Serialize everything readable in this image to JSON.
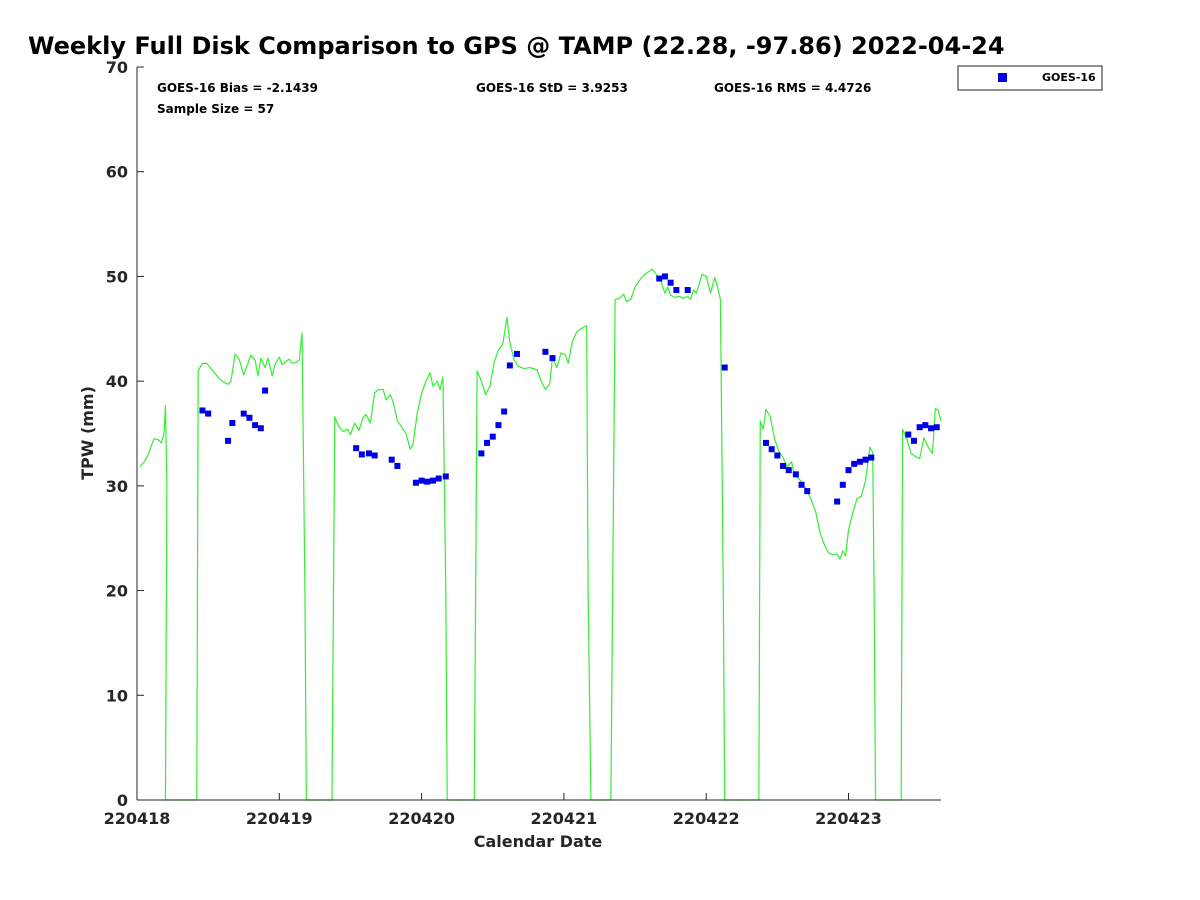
{
  "chart_data": {
    "type": "scatter",
    "title": "Weekly Full Disk Comparison to GPS @ TAMP (22.28, -97.86) 2022-04-24",
    "xlabel": "Calendar Date",
    "ylabel": "TPW (mm)",
    "xlim": [
      220418,
      220423.65
    ],
    "ylim": [
      0,
      70
    ],
    "yticks": [
      0,
      10,
      20,
      30,
      40,
      50,
      60,
      70
    ],
    "xticks": [
      {
        "value": 220418,
        "label": "220418"
      },
      {
        "value": 220419,
        "label": "220419"
      },
      {
        "value": 220420,
        "label": "220420"
      },
      {
        "value": 220421,
        "label": "220421"
      },
      {
        "value": 220422,
        "label": "220422"
      },
      {
        "value": 220423,
        "label": "220423"
      }
    ],
    "stats": {
      "bias": "GOES-16 Bias = -2.1439",
      "std": "GOES-16 StD = 3.9253",
      "rms": "GOES-16 RMS = 4.4726",
      "sample": "Sample Size = 57"
    },
    "legend": [
      {
        "name": "GOES-16",
        "marker": "square",
        "color": "#0000e6"
      }
    ],
    "colors": {
      "gps_line": "#33ee33",
      "goes_marker": "#0000e6",
      "axis": "#262626"
    },
    "series": [
      {
        "name": "GPS",
        "kind": "line",
        "points": [
          [
            220418.02,
            31.8
          ],
          [
            220418.05,
            32.3
          ],
          [
            220418.08,
            33.0
          ],
          [
            220418.1,
            33.8
          ],
          [
            220418.12,
            34.5
          ],
          [
            220418.15,
            34.4
          ],
          [
            220418.17,
            34.1
          ],
          [
            220418.19,
            35.0
          ],
          [
            220418.2,
            37.7
          ],
          [
            220418.21,
            30.0
          ],
          [
            220418.2,
            0.0
          ],
          [
            220418.42,
            0.0
          ],
          [
            220418.43,
            41.0
          ],
          [
            220418.46,
            41.7
          ],
          [
            220418.49,
            41.7
          ],
          [
            220418.52,
            41.2
          ],
          [
            220418.55,
            40.7
          ],
          [
            220418.58,
            40.2
          ],
          [
            220418.61,
            39.9
          ],
          [
            220418.64,
            39.7
          ],
          [
            220418.66,
            40.0
          ],
          [
            220418.69,
            42.6
          ],
          [
            220418.72,
            42.0
          ],
          [
            220418.75,
            40.6
          ],
          [
            220418.78,
            41.7
          ],
          [
            220418.8,
            42.5
          ],
          [
            220418.83,
            42.0
          ],
          [
            220418.85,
            40.5
          ],
          [
            220418.87,
            42.2
          ],
          [
            220418.9,
            41.3
          ],
          [
            220418.92,
            42.2
          ],
          [
            220418.95,
            40.5
          ],
          [
            220418.97,
            41.6
          ],
          [
            220419.0,
            42.3
          ],
          [
            220419.02,
            41.6
          ],
          [
            220419.04,
            41.8
          ],
          [
            220419.07,
            42.1
          ],
          [
            220419.09,
            41.7
          ],
          [
            220419.12,
            41.8
          ],
          [
            220419.14,
            42.0
          ],
          [
            220419.16,
            44.6
          ],
          [
            220419.18,
            20.0
          ],
          [
            220419.19,
            0.0
          ],
          [
            220419.37,
            0.0
          ],
          [
            220419.39,
            36.6
          ],
          [
            220419.42,
            35.6
          ],
          [
            220419.45,
            35.2
          ],
          [
            220419.48,
            35.4
          ],
          [
            220419.5,
            34.9
          ],
          [
            220419.53,
            36.0
          ],
          [
            220419.56,
            35.3
          ],
          [
            220419.59,
            36.6
          ],
          [
            220419.61,
            36.8
          ],
          [
            220419.64,
            36.0
          ],
          [
            220419.67,
            38.9
          ],
          [
            220419.7,
            39.2
          ],
          [
            220419.73,
            39.2
          ],
          [
            220419.75,
            38.2
          ],
          [
            220419.78,
            38.7
          ],
          [
            220419.8,
            38.0
          ],
          [
            220419.83,
            36.2
          ],
          [
            220419.86,
            35.6
          ],
          [
            220419.89,
            35.0
          ],
          [
            220419.92,
            33.5
          ],
          [
            220419.94,
            34.0
          ],
          [
            220419.97,
            37.0
          ],
          [
            220420.0,
            38.8
          ],
          [
            220420.03,
            40.0
          ],
          [
            220420.06,
            40.8
          ],
          [
            220420.08,
            39.5
          ],
          [
            220420.11,
            40.0
          ],
          [
            220420.13,
            39.2
          ],
          [
            220420.15,
            40.4
          ],
          [
            220420.17,
            20.0
          ],
          [
            220420.18,
            0.0
          ],
          [
            220420.37,
            0.0
          ],
          [
            220420.39,
            41.0
          ],
          [
            220420.42,
            40.0
          ],
          [
            220420.45,
            38.7
          ],
          [
            220420.48,
            39.5
          ],
          [
            220420.51,
            41.8
          ],
          [
            220420.54,
            43.0
          ],
          [
            220420.57,
            43.5
          ],
          [
            220420.6,
            46.1
          ],
          [
            220420.62,
            43.7
          ],
          [
            220420.65,
            42.0
          ],
          [
            220420.68,
            41.4
          ],
          [
            220420.72,
            41.2
          ],
          [
            220420.76,
            41.3
          ],
          [
            220420.81,
            41.1
          ],
          [
            220420.84,
            40.0
          ],
          [
            220420.87,
            39.2
          ],
          [
            220420.9,
            39.7
          ],
          [
            220420.92,
            42.3
          ],
          [
            220420.95,
            41.3
          ],
          [
            220420.98,
            42.7
          ],
          [
            220421.01,
            42.5
          ],
          [
            220421.03,
            41.7
          ],
          [
            220421.06,
            43.8
          ],
          [
            220421.09,
            44.7
          ],
          [
            220421.12,
            45.0
          ],
          [
            220421.16,
            45.3
          ],
          [
            220421.17,
            20.0
          ],
          [
            220421.19,
            0.0
          ],
          [
            220421.33,
            0.0
          ],
          [
            220421.36,
            47.8
          ],
          [
            220421.39,
            47.9
          ],
          [
            220421.42,
            48.3
          ],
          [
            220421.44,
            47.6
          ],
          [
            220421.47,
            47.8
          ],
          [
            220421.5,
            49.0
          ],
          [
            220421.53,
            49.6
          ],
          [
            220421.56,
            50.1
          ],
          [
            220421.59,
            50.4
          ],
          [
            220421.62,
            50.7
          ],
          [
            220421.65,
            50.2
          ],
          [
            220421.68,
            49.6
          ],
          [
            220421.71,
            48.4
          ],
          [
            220421.73,
            49.0
          ],
          [
            220421.75,
            48.2
          ],
          [
            220421.78,
            48.0
          ],
          [
            220421.81,
            48.1
          ],
          [
            220421.84,
            47.9
          ],
          [
            220421.87,
            48.1
          ],
          [
            220421.89,
            47.8
          ],
          [
            220421.91,
            48.7
          ],
          [
            220421.93,
            48.4
          ],
          [
            220421.95,
            49.2
          ],
          [
            220421.97,
            50.2
          ],
          [
            220422.0,
            50.0
          ],
          [
            220422.03,
            48.4
          ],
          [
            220422.06,
            49.9
          ],
          [
            220422.08,
            49.0
          ],
          [
            220422.1,
            47.8
          ],
          [
            220422.12,
            20.0
          ],
          [
            220422.13,
            0.0
          ],
          [
            220422.37,
            0.0
          ],
          [
            220422.38,
            36.2
          ],
          [
            220422.4,
            35.4
          ],
          [
            220422.42,
            37.3
          ],
          [
            220422.45,
            36.6
          ],
          [
            220422.48,
            34.5
          ],
          [
            220422.51,
            33.3
          ],
          [
            220422.54,
            32.7
          ],
          [
            220422.57,
            31.8
          ],
          [
            220422.6,
            32.3
          ],
          [
            220422.62,
            31.0
          ],
          [
            220422.65,
            30.7
          ],
          [
            220422.68,
            30.2
          ],
          [
            220422.71,
            29.5
          ],
          [
            220422.74,
            28.6
          ],
          [
            220422.77,
            27.5
          ],
          [
            220422.8,
            25.5
          ],
          [
            220422.83,
            24.4
          ],
          [
            220422.86,
            23.6
          ],
          [
            220422.89,
            23.4
          ],
          [
            220422.92,
            23.5
          ],
          [
            220422.94,
            23.0
          ],
          [
            220422.96,
            23.8
          ],
          [
            220422.98,
            23.3
          ],
          [
            220423.0,
            25.8
          ],
          [
            220423.03,
            27.4
          ],
          [
            220423.06,
            28.8
          ],
          [
            220423.09,
            29.0
          ],
          [
            220423.12,
            30.5
          ],
          [
            220423.15,
            33.7
          ],
          [
            220423.17,
            33.2
          ],
          [
            220423.18,
            20.0
          ],
          [
            220423.19,
            0.0
          ],
          [
            220423.37,
            0.0
          ],
          [
            220423.38,
            35.4
          ],
          [
            220423.41,
            34.5
          ],
          [
            220423.44,
            33.1
          ],
          [
            220423.47,
            32.8
          ],
          [
            220423.5,
            32.6
          ],
          [
            220423.53,
            34.6
          ],
          [
            220423.56,
            33.7
          ],
          [
            220423.59,
            33.1
          ],
          [
            220423.61,
            37.4
          ],
          [
            220423.63,
            37.2
          ],
          [
            220423.65,
            36.2
          ]
        ]
      },
      {
        "name": "GOES-16",
        "kind": "scatter",
        "points": [
          [
            220418.46,
            37.2
          ],
          [
            220418.5,
            36.9
          ],
          [
            220418.64,
            34.3
          ],
          [
            220418.67,
            36.0
          ],
          [
            220418.75,
            36.9
          ],
          [
            220418.79,
            36.5
          ],
          [
            220418.83,
            35.8
          ],
          [
            220418.87,
            35.5
          ],
          [
            220418.9,
            39.1
          ],
          [
            220419.54,
            33.6
          ],
          [
            220419.58,
            33.0
          ],
          [
            220419.63,
            33.1
          ],
          [
            220419.67,
            32.9
          ],
          [
            220419.79,
            32.5
          ],
          [
            220419.83,
            31.9
          ],
          [
            220419.96,
            30.3
          ],
          [
            220420.0,
            30.5
          ],
          [
            220420.04,
            30.4
          ],
          [
            220420.08,
            30.5
          ],
          [
            220420.12,
            30.7
          ],
          [
            220420.17,
            30.9
          ],
          [
            220420.42,
            33.1
          ],
          [
            220420.46,
            34.1
          ],
          [
            220420.5,
            34.7
          ],
          [
            220420.54,
            35.8
          ],
          [
            220420.58,
            37.1
          ],
          [
            220420.62,
            41.5
          ],
          [
            220420.67,
            42.6
          ],
          [
            220420.87,
            42.8
          ],
          [
            220420.92,
            42.2
          ],
          [
            220421.67,
            49.8
          ],
          [
            220421.71,
            50.0
          ],
          [
            220421.75,
            49.4
          ],
          [
            220421.79,
            48.7
          ],
          [
            220421.87,
            48.7
          ],
          [
            220422.13,
            41.3
          ],
          [
            220422.42,
            34.1
          ],
          [
            220422.46,
            33.5
          ],
          [
            220422.5,
            32.9
          ],
          [
            220422.54,
            31.9
          ],
          [
            220422.58,
            31.5
          ],
          [
            220422.63,
            31.1
          ],
          [
            220422.67,
            30.1
          ],
          [
            220422.71,
            29.5
          ],
          [
            220422.92,
            28.5
          ],
          [
            220422.96,
            30.1
          ],
          [
            220423.0,
            31.5
          ],
          [
            220423.04,
            32.1
          ],
          [
            220423.08,
            32.3
          ],
          [
            220423.12,
            32.5
          ],
          [
            220423.16,
            32.7
          ],
          [
            220423.42,
            34.9
          ],
          [
            220423.46,
            34.3
          ],
          [
            220423.5,
            35.6
          ],
          [
            220423.54,
            35.8
          ],
          [
            220423.58,
            35.5
          ],
          [
            220423.62,
            35.6
          ]
        ]
      }
    ]
  }
}
